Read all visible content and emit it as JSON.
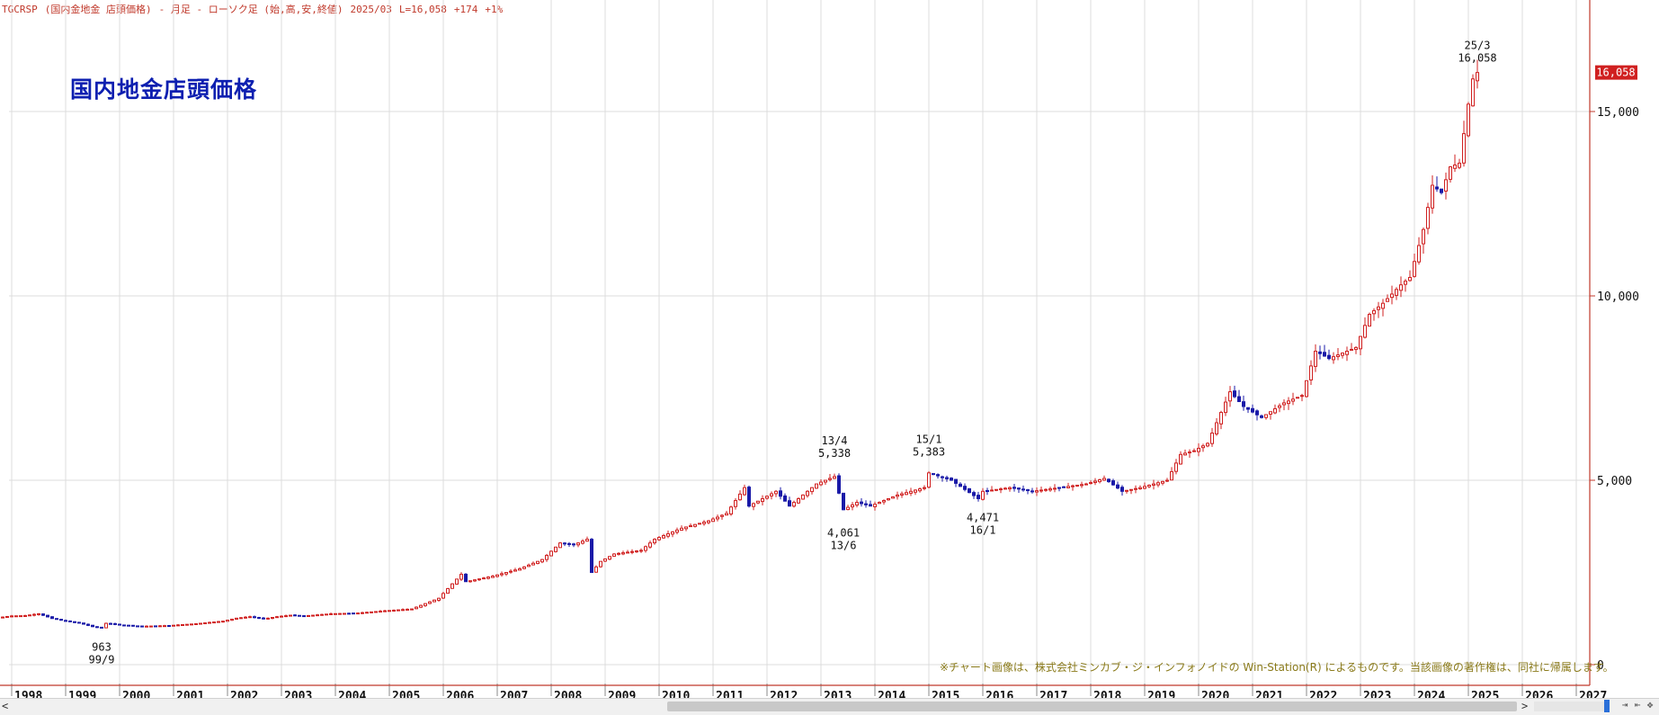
{
  "header": {
    "symbol": "TGCRSP",
    "name": "(国内金地金 店頭価格)",
    "period": "- 月足 - ローソク足 (始,高,安,終値)",
    "date": "2025/03",
    "last": "L=16,058",
    "change": "+174",
    "change_pct": "+1%"
  },
  "title_text": "国内地金店頭価格",
  "copyright": "※チャート画像は、株式会社ミンカブ・ジ・インフォノイドの Win-Station(R) によるものです。当該画像の著作権は、同社に帰属します。",
  "colors": {
    "up": "#d02020",
    "down": "#1a1aa8",
    "grid": "#dcdcdc",
    "axis": "#c0392b",
    "title": "#0d1fb0",
    "last_badge": "#d02020"
  },
  "chart_data": {
    "type": "candlestick",
    "x_axis": {
      "tick_labels": [
        "1998",
        "1999",
        "2000",
        "2001",
        "2002",
        "2003",
        "2004",
        "2005",
        "2006",
        "2007",
        "2008",
        "2009",
        "2010",
        "2011",
        "2012",
        "2013",
        "2014",
        "2015",
        "2016",
        "2017",
        "2018",
        "2019",
        "2020",
        "2021",
        "2022",
        "2023",
        "2024",
        "2025",
        "2026",
        "2027"
      ],
      "range": [
        "1997-11",
        "2027-06"
      ]
    },
    "y_axis": {
      "tick_labels": [
        "0",
        "5,000",
        "10,000",
        "15,000"
      ],
      "ticks": [
        0,
        5000,
        10000,
        15000
      ],
      "range": [
        0,
        17100
      ],
      "position": "right"
    },
    "last_value_label": "16,058",
    "last_value": 16058,
    "annotations": [
      {
        "value": "963",
        "date": "99/9",
        "x": "1999-09",
        "y": 963,
        "placement": "below"
      },
      {
        "value": "5,338",
        "date": "13/4",
        "x": "2013-04",
        "y": 5338,
        "placement": "above"
      },
      {
        "value": "4,061",
        "date": "13/6",
        "x": "2013-06",
        "y": 4061,
        "placement": "below"
      },
      {
        "value": "5,383",
        "date": "15/1",
        "x": "2015-01",
        "y": 5383,
        "placement": "above"
      },
      {
        "value": "4,471",
        "date": "16/1",
        "x": "2016-01",
        "y": 4471,
        "placement": "below"
      },
      {
        "value": "16,058",
        "date": "25/3",
        "x": "2025-03",
        "y": 16058,
        "placement": "above"
      }
    ],
    "series_close": [
      [
        "1997-11",
        1290
      ],
      [
        "1998-01",
        1320
      ],
      [
        "1998-04",
        1330
      ],
      [
        "1998-07",
        1380
      ],
      [
        "1998-10",
        1250
      ],
      [
        "1999-01",
        1180
      ],
      [
        "1999-04",
        1130
      ],
      [
        "1999-07",
        1030
      ],
      [
        "1999-09",
        1000
      ],
      [
        "1999-10",
        1120
      ],
      [
        "2000-01",
        1080
      ],
      [
        "2000-06",
        1040
      ],
      [
        "2000-12",
        1060
      ],
      [
        "2001-06",
        1110
      ],
      [
        "2001-12",
        1180
      ],
      [
        "2002-03",
        1260
      ],
      [
        "2002-06",
        1300
      ],
      [
        "2002-09",
        1240
      ],
      [
        "2002-12",
        1300
      ],
      [
        "2003-03",
        1340
      ],
      [
        "2003-06",
        1320
      ],
      [
        "2003-12",
        1380
      ],
      [
        "2004-06",
        1400
      ],
      [
        "2004-12",
        1460
      ],
      [
        "2005-06",
        1510
      ],
      [
        "2005-12",
        1800
      ],
      [
        "2006-05",
        2450
      ],
      [
        "2006-06",
        2250
      ],
      [
        "2006-12",
        2400
      ],
      [
        "2007-06",
        2600
      ],
      [
        "2007-11",
        2850
      ],
      [
        "2008-03",
        3300
      ],
      [
        "2008-06",
        3250
      ],
      [
        "2008-09",
        3400
      ],
      [
        "2008-10",
        2500
      ],
      [
        "2008-12",
        2800
      ],
      [
        "2009-03",
        3000
      ],
      [
        "2009-09",
        3100
      ],
      [
        "2009-12",
        3400
      ],
      [
        "2010-06",
        3700
      ],
      [
        "2010-12",
        3900
      ],
      [
        "2011-04",
        4100
      ],
      [
        "2011-08",
        4800
      ],
      [
        "2011-09",
        4300
      ],
      [
        "2011-12",
        4500
      ],
      [
        "2012-03",
        4700
      ],
      [
        "2012-06",
        4300
      ],
      [
        "2012-09",
        4600
      ],
      [
        "2012-12",
        4900
      ],
      [
        "2013-04",
        5100
      ],
      [
        "2013-06",
        4200
      ],
      [
        "2013-09",
        4400
      ],
      [
        "2013-12",
        4300
      ],
      [
        "2014-06",
        4600
      ],
      [
        "2014-12",
        4800
      ],
      [
        "2015-01",
        5200
      ],
      [
        "2015-06",
        5000
      ],
      [
        "2015-12",
        4500
      ],
      [
        "2016-01",
        4700
      ],
      [
        "2016-07",
        4800
      ],
      [
        "2016-12",
        4700
      ],
      [
        "2017-06",
        4800
      ],
      [
        "2017-12",
        4900
      ],
      [
        "2018-04",
        5050
      ],
      [
        "2018-08",
        4700
      ],
      [
        "2018-12",
        4800
      ],
      [
        "2019-06",
        5000
      ],
      [
        "2019-09",
        5700
      ],
      [
        "2019-12",
        5800
      ],
      [
        "2020-03",
        6000
      ],
      [
        "2020-08",
        7400
      ],
      [
        "2020-11",
        7000
      ],
      [
        "2021-03",
        6700
      ],
      [
        "2021-08",
        7100
      ],
      [
        "2021-12",
        7300
      ],
      [
        "2022-03",
        8500
      ],
      [
        "2022-06",
        8300
      ],
      [
        "2022-10",
        8500
      ],
      [
        "2022-12",
        8600
      ],
      [
        "2023-03",
        9500
      ],
      [
        "2023-06",
        9800
      ],
      [
        "2023-10",
        10300
      ],
      [
        "2023-12",
        10500
      ],
      [
        "2024-03",
        11800
      ],
      [
        "2024-05",
        13000
      ],
      [
        "2024-07",
        12800
      ],
      [
        "2024-09",
        13500
      ],
      [
        "2024-11",
        13600
      ],
      [
        "2024-12",
        14400
      ],
      [
        "2025-01",
        15200
      ],
      [
        "2025-02",
        15884
      ],
      [
        "2025-03",
        16058
      ]
    ]
  }
}
